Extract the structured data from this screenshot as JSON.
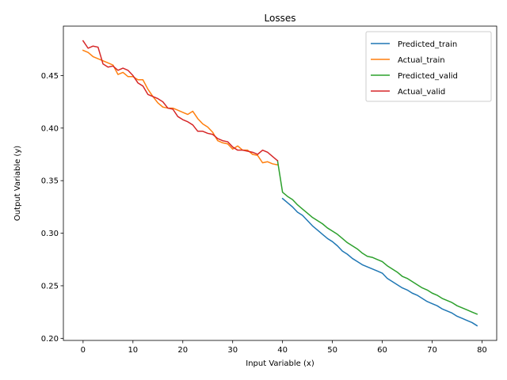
{
  "chart_data": {
    "type": "line",
    "title": "Losses",
    "xlabel": "Input Variable (x)",
    "ylabel": "Output Variable (y)",
    "xlim": [
      -3.95,
      82.95
    ],
    "ylim": [
      0.198,
      0.497
    ],
    "xticks": [
      0,
      10,
      20,
      30,
      40,
      50,
      60,
      70,
      80
    ],
    "yticks": [
      0.2,
      0.25,
      0.3,
      0.35,
      0.4,
      0.45
    ],
    "ytick_labels": [
      "0.20",
      "0.25",
      "0.30",
      "0.35",
      "0.40",
      "0.45"
    ],
    "grid": false,
    "legend_position": "top-right",
    "series": [
      {
        "name": "Predicted_train",
        "color": "#1f77b4",
        "x": [
          40,
          41,
          42,
          43,
          44,
          45,
          46,
          47,
          48,
          49,
          50,
          51,
          52,
          53,
          54,
          55,
          56,
          57,
          58,
          59,
          60,
          61,
          62,
          63,
          64,
          65,
          66,
          67,
          68,
          69,
          70,
          71,
          72,
          73,
          74,
          75,
          76,
          77,
          78,
          79
        ],
        "values": [
          0.333,
          0.329,
          0.325,
          0.32,
          0.317,
          0.312,
          0.307,
          0.303,
          0.299,
          0.295,
          0.292,
          0.288,
          0.283,
          0.28,
          0.276,
          0.273,
          0.27,
          0.268,
          0.266,
          0.264,
          0.262,
          0.257,
          0.254,
          0.251,
          0.248,
          0.246,
          0.243,
          0.241,
          0.238,
          0.235,
          0.233,
          0.231,
          0.228,
          0.226,
          0.224,
          0.221,
          0.219,
          0.217,
          0.215,
          0.212
        ]
      },
      {
        "name": "Actual_train",
        "color": "#ff7f0e",
        "x": [
          0,
          1,
          2,
          3,
          4,
          5,
          6,
          7,
          8,
          9,
          10,
          11,
          12,
          13,
          14,
          15,
          16,
          17,
          18,
          19,
          20,
          21,
          22,
          23,
          24,
          25,
          26,
          27,
          28,
          29,
          30,
          31,
          32,
          33,
          34,
          35,
          36,
          37,
          38,
          39
        ],
        "values": [
          0.474,
          0.472,
          0.468,
          0.466,
          0.464,
          0.462,
          0.46,
          0.451,
          0.453,
          0.449,
          0.449,
          0.446,
          0.446,
          0.437,
          0.43,
          0.424,
          0.42,
          0.419,
          0.419,
          0.417,
          0.415,
          0.413,
          0.416,
          0.409,
          0.404,
          0.401,
          0.396,
          0.388,
          0.386,
          0.385,
          0.38,
          0.383,
          0.379,
          0.379,
          0.375,
          0.374,
          0.367,
          0.368,
          0.366,
          0.365
        ]
      },
      {
        "name": "Predicted_valid",
        "color": "#2ca02c",
        "x": [
          39,
          40,
          41,
          42,
          43,
          44,
          45,
          46,
          47,
          48,
          49,
          50,
          51,
          52,
          53,
          54,
          55,
          56,
          57,
          58,
          59,
          60,
          61,
          62,
          63,
          64,
          65,
          66,
          67,
          68,
          69,
          70,
          71,
          72,
          73,
          74,
          75,
          76,
          77,
          78,
          79
        ],
        "values": [
          0.369,
          0.339,
          0.335,
          0.332,
          0.327,
          0.323,
          0.319,
          0.315,
          0.312,
          0.309,
          0.305,
          0.302,
          0.299,
          0.295,
          0.291,
          0.288,
          0.285,
          0.281,
          0.278,
          0.277,
          0.275,
          0.273,
          0.269,
          0.266,
          0.263,
          0.259,
          0.257,
          0.254,
          0.251,
          0.248,
          0.246,
          0.243,
          0.241,
          0.238,
          0.236,
          0.234,
          0.231,
          0.229,
          0.227,
          0.225,
          0.223
        ]
      },
      {
        "name": "Actual_valid",
        "color": "#d62728",
        "x": [
          0,
          1,
          2,
          3,
          4,
          5,
          6,
          7,
          8,
          9,
          10,
          11,
          12,
          13,
          14,
          15,
          16,
          17,
          18,
          19,
          20,
          21,
          22,
          23,
          24,
          25,
          26,
          27,
          28,
          29,
          30,
          31,
          32,
          33,
          34,
          35,
          36,
          37,
          38,
          39
        ],
        "values": [
          0.483,
          0.476,
          0.478,
          0.477,
          0.461,
          0.458,
          0.459,
          0.455,
          0.457,
          0.455,
          0.45,
          0.443,
          0.44,
          0.432,
          0.43,
          0.428,
          0.425,
          0.419,
          0.418,
          0.411,
          0.408,
          0.406,
          0.403,
          0.397,
          0.397,
          0.395,
          0.394,
          0.39,
          0.388,
          0.387,
          0.382,
          0.379,
          0.379,
          0.378,
          0.377,
          0.375,
          0.379,
          0.377,
          0.373,
          0.369
        ]
      }
    ]
  }
}
